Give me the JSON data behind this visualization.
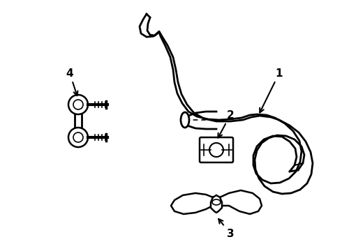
{
  "background_color": "#ffffff",
  "line_color": "#000000",
  "label_color": "#000000",
  "figsize": [
    4.9,
    3.6
  ],
  "dpi": 100,
  "bar_outer_lw": 3.5,
  "bar_inner_lw": 2.0,
  "component_lw": 1.5
}
